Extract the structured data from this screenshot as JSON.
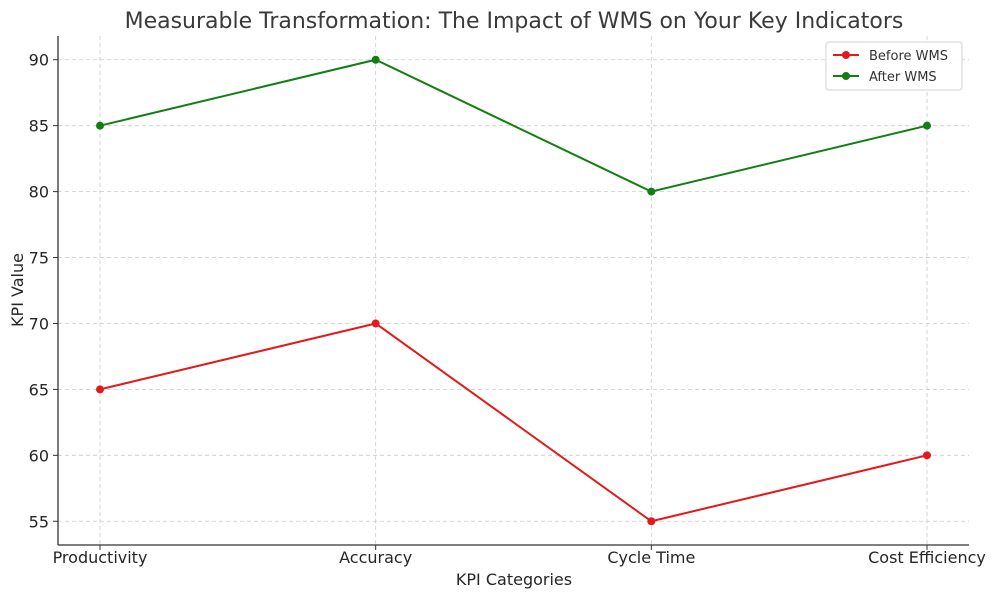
{
  "chart_data": {
    "type": "line",
    "title": "Measurable Transformation: The Impact of WMS on Your Key Indicators",
    "xlabel": "KPI Categories",
    "ylabel": "KPI Value",
    "categories": [
      "Productivity",
      "Accuracy",
      "Cycle Time",
      "Cost Efficiency"
    ],
    "ylim": [
      53.2,
      91.8
    ],
    "yticks": [
      55,
      60,
      65,
      70,
      75,
      80,
      85,
      90
    ],
    "grid": true,
    "legend_position": "top-right",
    "series": [
      {
        "name": "Before WMS",
        "color": "#e31a1c",
        "values": [
          65,
          70,
          55,
          60
        ]
      },
      {
        "name": "After WMS",
        "color": "#137e13",
        "values": [
          85,
          90,
          80,
          85
        ]
      }
    ]
  }
}
